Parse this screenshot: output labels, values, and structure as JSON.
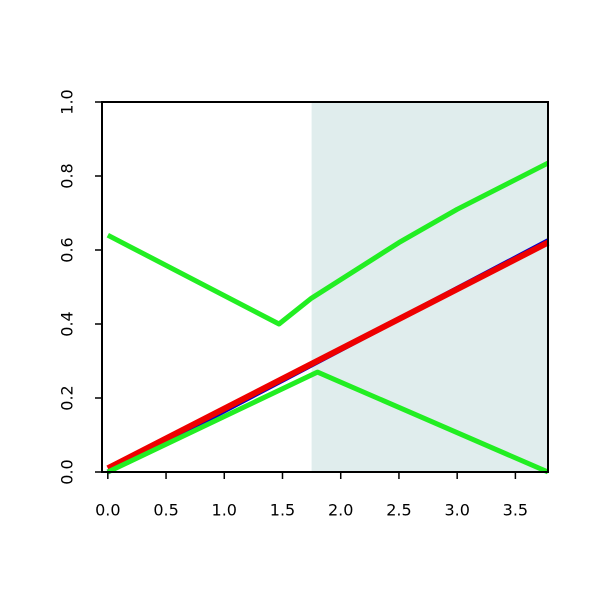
{
  "chart_data": {
    "type": "line",
    "xlim": [
      -0.05,
      3.78
    ],
    "ylim": [
      0,
      1
    ],
    "xticks": [
      {
        "value": 0,
        "label": "0.0"
      },
      0.5,
      {
        "value": 1,
        "label": "1.0"
      },
      1.5,
      {
        "value": 2,
        "label": "2.0"
      },
      2.5,
      {
        "value": 3,
        "label": "3.0"
      },
      3.5
    ],
    "yticks": [
      {
        "value": 0,
        "label": "0.0"
      },
      0.2,
      0.4,
      0.6,
      0.8,
      {
        "value": 1,
        "label": "1.0"
      }
    ],
    "shaded_region": {
      "xmin": 1.75,
      "xmax": 3.78,
      "color": "#e0eded"
    },
    "series": [
      {
        "color": "#0000cc",
        "width": 5,
        "x": [
          0,
          3.78
        ],
        "values": [
          0.0,
          0.625
        ]
      },
      {
        "color": "#ee0000",
        "width": 6,
        "x": [
          0,
          3.78
        ],
        "values": [
          0.01,
          0.62
        ]
      },
      {
        "color": "#22ee22",
        "width": 5,
        "x": [
          0,
          1.47,
          1.75,
          2.0,
          2.5,
          3.0,
          3.5,
          3.78
        ],
        "values": [
          0.64,
          0.4,
          0.47,
          0.52,
          0.62,
          0.71,
          0.79,
          0.835
        ]
      },
      {
        "color": "#22ee22",
        "width": 5,
        "x": [
          0,
          1.8,
          3.78
        ],
        "values": [
          0.0,
          0.27,
          0.0
        ]
      }
    ]
  }
}
